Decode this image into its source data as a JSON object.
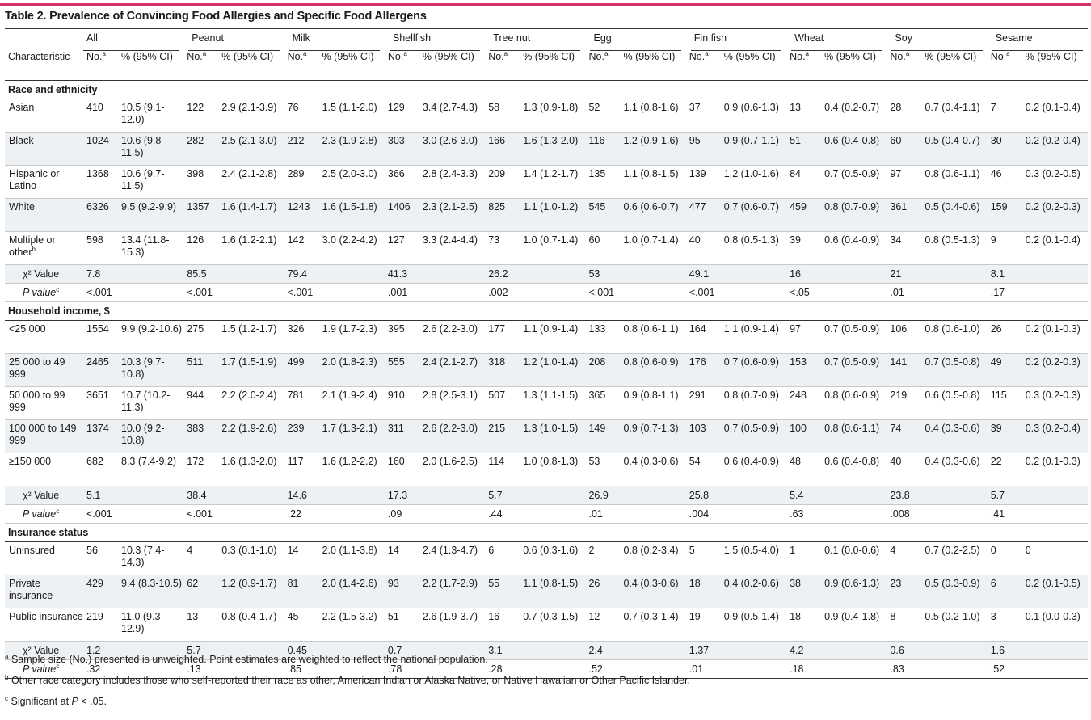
{
  "title": "Table 2. Prevalence of Convincing Food Allergies and Specific Food Allergens",
  "columns": {
    "characteristic": "Characteristic",
    "no_label": "No.",
    "no_sup": "a",
    "pct_label": "% (95% CI)",
    "groups": [
      "All",
      "Peanut",
      "Milk",
      "Shellfish",
      "Tree nut",
      "Egg",
      "Fin fish",
      "Wheat",
      "Soy",
      "Sesame"
    ]
  },
  "sections": [
    {
      "heading": "Race and ethnicity",
      "rows": [
        {
          "label": "Asian",
          "sup": "",
          "cells": [
            [
              "410",
              "10.5 (9.1-12.0)"
            ],
            [
              "122",
              "2.9 (2.1-3.9)"
            ],
            [
              "76",
              "1.5 (1.1-2.0)"
            ],
            [
              "129",
              "3.4 (2.7-4.3)"
            ],
            [
              "58",
              "1.3 (0.9-1.8)"
            ],
            [
              "52",
              "1.1 (0.8-1.6)"
            ],
            [
              "37",
              "0.9 (0.6-1.3)"
            ],
            [
              "13",
              "0.4 (0.2-0.7)"
            ],
            [
              "28",
              "0.7 (0.4-1.1)"
            ],
            [
              "7",
              "0.2 (0.1-0.4)"
            ]
          ]
        },
        {
          "label": "Black",
          "sup": "",
          "cells": [
            [
              "1024",
              "10.6 (9.8-11.5)"
            ],
            [
              "282",
              "2.5 (2.1-3.0)"
            ],
            [
              "212",
              "2.3 (1.9-2.8)"
            ],
            [
              "303",
              "3.0 (2.6-3.0)"
            ],
            [
              "166",
              "1.6 (1.3-2.0)"
            ],
            [
              "116",
              "1.2 (0.9-1.6)"
            ],
            [
              "95",
              "0.9 (0.7-1.1)"
            ],
            [
              "51",
              "0.6 (0.4-0.8)"
            ],
            [
              "60",
              "0.5 (0.4-0.7)"
            ],
            [
              "30",
              "0.2 (0.2-0.4)"
            ]
          ]
        },
        {
          "label": "Hispanic or Latino",
          "sup": "",
          "cells": [
            [
              "1368",
              "10.6 (9.7-11.5)"
            ],
            [
              "398",
              "2.4 (2.1-2.8)"
            ],
            [
              "289",
              "2.5 (2.0-3.0)"
            ],
            [
              "366",
              "2.8 (2.4-3.3)"
            ],
            [
              "209",
              "1.4 (1.2-1.7)"
            ],
            [
              "135",
              "1.1 (0.8-1.5)"
            ],
            [
              "139",
              "1.2 (1.0-1.6)"
            ],
            [
              "84",
              "0.7 (0.5-0.9)"
            ],
            [
              "97",
              "0.8 (0.6-1.1)"
            ],
            [
              "46",
              "0.3 (0.2-0.5)"
            ]
          ]
        },
        {
          "label": "White",
          "sup": "",
          "cells": [
            [
              "6326",
              "9.5 (9.2-9.9)"
            ],
            [
              "1357",
              "1.6 (1.4-1.7)"
            ],
            [
              "1243",
              "1.6 (1.5-1.8)"
            ],
            [
              "1406",
              "2.3 (2.1-2.5)"
            ],
            [
              "825",
              "1.1 (1.0-1.2)"
            ],
            [
              "545",
              "0.6 (0.6-0.7)"
            ],
            [
              "477",
              "0.7 (0.6-0.7)"
            ],
            [
              "459",
              "0.8 (0.7-0.9)"
            ],
            [
              "361",
              "0.5 (0.4-0.6)"
            ],
            [
              "159",
              "0.2 (0.2-0.3)"
            ]
          ]
        },
        {
          "label": "Multiple or other",
          "sup": "b",
          "cells": [
            [
              "598",
              "13.4 (11.8-15.3)"
            ],
            [
              "126",
              "1.6 (1.2-2.1)"
            ],
            [
              "142",
              "3.0 (2.2-4.2)"
            ],
            [
              "127",
              "3.3 (2.4-4.4)"
            ],
            [
              "73",
              "1.0 (0.7-1.4)"
            ],
            [
              "60",
              "1.0 (0.7-1.4)"
            ],
            [
              "40",
              "0.8 (0.5-1.3)"
            ],
            [
              "39",
              "0.6 (0.4-0.9)"
            ],
            [
              "34",
              "0.8 (0.5-1.3)"
            ],
            [
              "9",
              "0.2 (0.1-0.4)"
            ]
          ]
        }
      ],
      "chi_label": "χ² Value",
      "chi": [
        "7.8",
        "85.5",
        "79.4",
        "41.3",
        "26.2",
        "53",
        "49.1",
        "16",
        "21",
        "8.1"
      ],
      "p_label": "P value",
      "p_sup": "c",
      "p": [
        "<.001",
        "<.001",
        "<.001",
        ".001",
        ".002",
        "<.001",
        "<.001",
        "<.05",
        ".01",
        ".17"
      ]
    },
    {
      "heading": "Household income, $",
      "rows": [
        {
          "label": "<25 000",
          "sup": "",
          "cells": [
            [
              "1554",
              "9.9 (9.2-10.6)"
            ],
            [
              "275",
              "1.5 (1.2-1.7)"
            ],
            [
              "326",
              "1.9 (1.7-2.3)"
            ],
            [
              "395",
              "2.6 (2.2-3.0)"
            ],
            [
              "177",
              "1.1 (0.9-1.4)"
            ],
            [
              "133",
              "0.8 (0.6-1.1)"
            ],
            [
              "164",
              "1.1 (0.9-1.4)"
            ],
            [
              "97",
              "0.7 (0.5-0.9)"
            ],
            [
              "106",
              "0.8 (0.6-1.0)"
            ],
            [
              "26",
              "0.2 (0.1-0.3)"
            ]
          ]
        },
        {
          "label": "25 000 to 49 999",
          "sup": "",
          "cells": [
            [
              "2465",
              "10.3 (9.7-10.8)"
            ],
            [
              "511",
              "1.7 (1.5-1.9)"
            ],
            [
              "499",
              "2.0 (1.8-2.3)"
            ],
            [
              "555",
              "2.4 (2.1-2.7)"
            ],
            [
              "318",
              "1.2 (1.0-1.4)"
            ],
            [
              "208",
              "0.8 (0.6-0.9)"
            ],
            [
              "176",
              "0.7 (0.6-0.9)"
            ],
            [
              "153",
              "0.7 (0.5-0.9)"
            ],
            [
              "141",
              "0.7 (0.5-0.8)"
            ],
            [
              "49",
              "0.2 (0.2-0.3)"
            ]
          ]
        },
        {
          "label": "50 000 to 99 999",
          "sup": "",
          "cells": [
            [
              "3651",
              "10.7 (10.2-11.3)"
            ],
            [
              "944",
              "2.2 (2.0-2.4)"
            ],
            [
              "781",
              "2.1 (1.9-2.4)"
            ],
            [
              "910",
              "2.8 (2.5-3.1)"
            ],
            [
              "507",
              "1.3 (1.1-1.5)"
            ],
            [
              "365",
              "0.9 (0.8-1.1)"
            ],
            [
              "291",
              "0.8 (0.7-0.9)"
            ],
            [
              "248",
              "0.8 (0.6-0.9)"
            ],
            [
              "219",
              "0.6 (0.5-0.8)"
            ],
            [
              "115",
              "0.3 (0.2-0.3)"
            ]
          ]
        },
        {
          "label": "100 000 to 149 999",
          "sup": "",
          "cells": [
            [
              "1374",
              "10.0 (9.2-10.8)"
            ],
            [
              "383",
              "2.2 (1.9-2.6)"
            ],
            [
              "239",
              "1.7 (1.3-2.1)"
            ],
            [
              "311",
              "2.6 (2.2-3.0)"
            ],
            [
              "215",
              "1.3 (1.0-1.5)"
            ],
            [
              "149",
              "0.9 (0.7-1.3)"
            ],
            [
              "103",
              "0.7 (0.5-0.9)"
            ],
            [
              "100",
              "0.8 (0.6-1.1)"
            ],
            [
              "74",
              "0.4 (0.3-0.6)"
            ],
            [
              "39",
              "0.3 (0.2-0.4)"
            ]
          ]
        },
        {
          "label": "≥150 000",
          "sup": "",
          "cells": [
            [
              "682",
              "8.3 (7.4-9.2)"
            ],
            [
              "172",
              "1.6 (1.3-2.0)"
            ],
            [
              "117",
              "1.6 (1.2-2.2)"
            ],
            [
              "160",
              "2.0 (1.6-2.5)"
            ],
            [
              "114",
              "1.0 (0.8-1.3)"
            ],
            [
              "53",
              "0.4 (0.3-0.6)"
            ],
            [
              "54",
              "0.6 (0.4-0.9)"
            ],
            [
              "48",
              "0.6 (0.4-0.8)"
            ],
            [
              "40",
              "0.4 (0.3-0.6)"
            ],
            [
              "22",
              "0.2 (0.1-0.3)"
            ]
          ]
        }
      ],
      "chi_label": "χ² Value",
      "chi": [
        "5.1",
        "38.4",
        "14.6",
        "17.3",
        "5.7",
        "26.9",
        "25.8",
        "5.4",
        "23.8",
        "5.7"
      ],
      "p_label": "P value",
      "p_sup": "c",
      "p": [
        "<.001",
        "<.001",
        ".22",
        ".09",
        ".44",
        ".01",
        ".004",
        ".63",
        ".008",
        ".41"
      ]
    },
    {
      "heading": "Insurance status",
      "rows": [
        {
          "label": "Uninsured",
          "sup": "",
          "cells": [
            [
              "56",
              "10.3 (7.4-14.3)"
            ],
            [
              "4",
              "0.3 (0.1-1.0)"
            ],
            [
              "14",
              "2.0 (1.1-3.8)"
            ],
            [
              "14",
              "2.4 (1.3-4.7)"
            ],
            [
              "6",
              "0.6 (0.3-1.6)"
            ],
            [
              "2",
              "0.8 (0.2-3.4)"
            ],
            [
              "5",
              "1.5 (0.5-4.0)"
            ],
            [
              "1",
              "0.1 (0.0-0.6)"
            ],
            [
              "4",
              "0.7 (0.2-2.5)"
            ],
            [
              "0",
              "0"
            ]
          ]
        },
        {
          "label": "Private insurance",
          "sup": "",
          "cells": [
            [
              "429",
              "9.4 (8.3-10.5)"
            ],
            [
              "62",
              "1.2 (0.9-1.7)"
            ],
            [
              "81",
              "2.0 (1.4-2.6)"
            ],
            [
              "93",
              "2.2 (1.7-2.9)"
            ],
            [
              "55",
              "1.1 (0.8-1.5)"
            ],
            [
              "26",
              "0.4 (0.3-0.6)"
            ],
            [
              "18",
              "0.4 (0.2-0.6)"
            ],
            [
              "38",
              "0.9 (0.6-1.3)"
            ],
            [
              "23",
              "0.5 (0.3-0.9)"
            ],
            [
              "6",
              "0.2 (0.1-0.5)"
            ]
          ]
        },
        {
          "label": "Public insurance",
          "sup": "",
          "cells": [
            [
              "219",
              "11.0 (9.3-12.9)"
            ],
            [
              "13",
              "0.8 (0.4-1.7)"
            ],
            [
              "45",
              "2.2 (1.5-3.2)"
            ],
            [
              "51",
              "2.6 (1.9-3.7)"
            ],
            [
              "16",
              "0.7 (0.3-1.5)"
            ],
            [
              "12",
              "0.7 (0.3-1.4)"
            ],
            [
              "19",
              "0.9 (0.5-1.4)"
            ],
            [
              "18",
              "0.9 (0.4-1.8)"
            ],
            [
              "8",
              "0.5 (0.2-1.0)"
            ],
            [
              "3",
              "0.1 (0.0-0.3)"
            ]
          ]
        }
      ],
      "chi_label": "χ² Value",
      "chi": [
        "1.2",
        "5.7",
        "0.45",
        "0.7",
        "3.1",
        "2.4",
        "1.37",
        "4.2",
        "0.6",
        "1.6"
      ],
      "p_label": "P value",
      "p_sup": "c",
      "p": [
        ".32",
        ".13",
        ".85",
        ".78",
        ".28",
        ".52",
        ".01",
        ".18",
        ".83",
        ".52"
      ]
    }
  ],
  "footnotes": [
    {
      "mark": "a",
      "text": "Sample size (No.) presented is unweighted. Point estimates are weighted to reflect the national population."
    },
    {
      "mark": "b",
      "text": "Other race category includes those who self-reported their race as other, American Indian or Alaska Native, or Native Hawaiian or Other Pacific Islander."
    },
    {
      "mark": "c",
      "text_before": "Significant at ",
      "italic": "P",
      "text_after": " < .05."
    }
  ]
}
